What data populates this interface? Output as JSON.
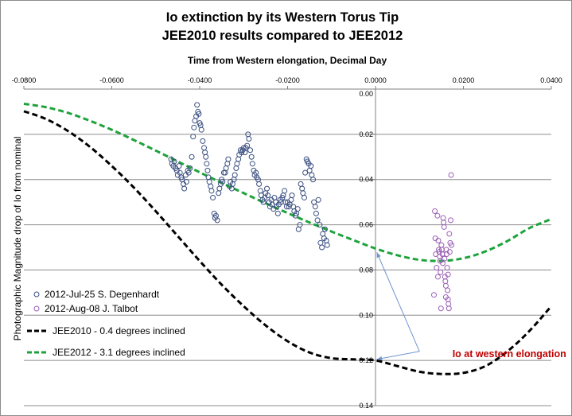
{
  "chart_data": {
    "type": "scatter",
    "title": "Io extinction by its Western Torus Tip",
    "subtitle": "JEE2010 results compared to JEE2012",
    "xlabel": "Time from Western elongation, Decimal Day",
    "ylabel": "Photographic Magnitude drop of Io from nominal",
    "xlim": [
      -0.08,
      0.04
    ],
    "ylim": [
      0.0,
      0.14
    ],
    "y_reversed": true,
    "x_axis_position": "top",
    "grid": "horizontal",
    "x_ticks": [
      "-0.0800",
      "-0.0600",
      "-0.0400",
      "-0.0200",
      "0.0000",
      "0.0200",
      "0.0400"
    ],
    "y_ticks": [
      "0.00",
      "0.02",
      "0.04",
      "0.06",
      "0.08",
      "0.10",
      "0.12",
      "0.14"
    ],
    "legend_position": "bottom-left",
    "colors": {
      "degenhardt": "#3a4f80",
      "talbot": "#9b5fb5",
      "jee2010": "#000000",
      "jee2012": "#1ea23c",
      "annotation_text": "#c00000",
      "annotation_arrow": "#6d95cf",
      "grid": "#8c8c8c"
    },
    "series": [
      {
        "name": "2012-Jul-25 S. Degenhardt",
        "kind": "scatter",
        "marker": "open-circle",
        "points": [
          [
            -0.0465,
            0.031
          ],
          [
            -0.0463,
            0.033
          ],
          [
            -0.046,
            0.034
          ],
          [
            -0.0458,
            0.032
          ],
          [
            -0.0455,
            0.035
          ],
          [
            -0.0452,
            0.036
          ],
          [
            -0.045,
            0.038
          ],
          [
            -0.0447,
            0.034
          ],
          [
            -0.0445,
            0.037
          ],
          [
            -0.0442,
            0.039
          ],
          [
            -0.044,
            0.04
          ],
          [
            -0.0437,
            0.042
          ],
          [
            -0.0435,
            0.044
          ],
          [
            -0.0432,
            0.038
          ],
          [
            -0.043,
            0.041
          ],
          [
            -0.0427,
            0.036
          ],
          [
            -0.0425,
            0.037
          ],
          [
            -0.0422,
            0.035
          ],
          [
            -0.0418,
            0.03
          ],
          [
            -0.0415,
            0.021
          ],
          [
            -0.0413,
            0.017
          ],
          [
            -0.0411,
            0.014
          ],
          [
            -0.0408,
            0.012
          ],
          [
            -0.0406,
            0.007
          ],
          [
            -0.0404,
            0.01
          ],
          [
            -0.0402,
            0.011
          ],
          [
            -0.04,
            0.015
          ],
          [
            -0.0398,
            0.016
          ],
          [
            -0.0396,
            0.018
          ],
          [
            -0.0393,
            0.023
          ],
          [
            -0.039,
            0.026
          ],
          [
            -0.0388,
            0.028
          ],
          [
            -0.0386,
            0.03
          ],
          [
            -0.0384,
            0.033
          ],
          [
            -0.0382,
            0.036
          ],
          [
            -0.038,
            0.039
          ],
          [
            -0.0378,
            0.041
          ],
          [
            -0.0375,
            0.043
          ],
          [
            -0.0373,
            0.045
          ],
          [
            -0.037,
            0.048
          ],
          [
            -0.0367,
            0.055
          ],
          [
            -0.0365,
            0.057
          ],
          [
            -0.0363,
            0.056
          ],
          [
            -0.036,
            0.058
          ],
          [
            -0.0357,
            0.046
          ],
          [
            -0.0355,
            0.044
          ],
          [
            -0.0352,
            0.042
          ],
          [
            -0.035,
            0.04
          ],
          [
            -0.0348,
            0.041
          ],
          [
            -0.0345,
            0.037
          ],
          [
            -0.0342,
            0.037
          ],
          [
            -0.034,
            0.035
          ],
          [
            -0.0337,
            0.033
          ],
          [
            -0.0335,
            0.031
          ],
          [
            -0.0332,
            0.043
          ],
          [
            -0.033,
            0.041
          ],
          [
            -0.0327,
            0.044
          ],
          [
            -0.0325,
            0.042
          ],
          [
            -0.0322,
            0.04
          ],
          [
            -0.032,
            0.038
          ],
          [
            -0.0317,
            0.035
          ],
          [
            -0.0315,
            0.033
          ],
          [
            -0.0312,
            0.031
          ],
          [
            -0.031,
            0.029
          ],
          [
            -0.0307,
            0.027
          ],
          [
            -0.0305,
            0.028
          ],
          [
            -0.0302,
            0.027
          ],
          [
            -0.03,
            0.026
          ],
          [
            -0.0297,
            0.028
          ],
          [
            -0.0295,
            0.026
          ],
          [
            -0.0292,
            0.025
          ],
          [
            -0.029,
            0.02
          ],
          [
            -0.0288,
            0.022
          ],
          [
            -0.0285,
            0.027
          ],
          [
            -0.0282,
            0.03
          ],
          [
            -0.028,
            0.033
          ],
          [
            -0.0277,
            0.036
          ],
          [
            -0.0275,
            0.038
          ],
          [
            -0.0272,
            0.037
          ],
          [
            -0.027,
            0.039
          ],
          [
            -0.0267,
            0.04
          ],
          [
            -0.0265,
            0.042
          ],
          [
            -0.0262,
            0.045
          ],
          [
            -0.026,
            0.047
          ],
          [
            -0.0257,
            0.049
          ],
          [
            -0.0255,
            0.05
          ],
          [
            -0.0252,
            0.048
          ],
          [
            -0.025,
            0.046
          ],
          [
            -0.0247,
            0.044
          ],
          [
            -0.0245,
            0.047
          ],
          [
            -0.0242,
            0.05
          ],
          [
            -0.024,
            0.052
          ],
          [
            -0.0237,
            0.049
          ],
          [
            -0.0235,
            0.051
          ],
          [
            -0.0232,
            0.053
          ],
          [
            -0.023,
            0.048
          ],
          [
            -0.0227,
            0.05
          ],
          [
            -0.0225,
            0.052
          ],
          [
            -0.0222,
            0.055
          ],
          [
            -0.022,
            0.051
          ],
          [
            -0.0217,
            0.049
          ],
          [
            -0.0215,
            0.05
          ],
          [
            -0.0212,
            0.048
          ],
          [
            -0.021,
            0.047
          ],
          [
            -0.0207,
            0.045
          ],
          [
            -0.0205,
            0.05
          ],
          [
            -0.0202,
            0.052
          ],
          [
            -0.02,
            0.05
          ],
          [
            -0.0197,
            0.052
          ],
          [
            -0.0195,
            0.051
          ],
          [
            -0.0192,
            0.049
          ],
          [
            -0.019,
            0.047
          ],
          [
            -0.0187,
            0.052
          ],
          [
            -0.0185,
            0.054
          ],
          [
            -0.0182,
            0.056
          ],
          [
            -0.018,
            0.055
          ],
          [
            -0.0177,
            0.053
          ],
          [
            -0.0175,
            0.062
          ],
          [
            -0.0172,
            0.06
          ],
          [
            -0.017,
            0.042
          ],
          [
            -0.0167,
            0.044
          ],
          [
            -0.0165,
            0.046
          ],
          [
            -0.0162,
            0.048
          ],
          [
            -0.016,
            0.037
          ],
          [
            -0.0157,
            0.031
          ],
          [
            -0.0155,
            0.032
          ],
          [
            -0.0152,
            0.033
          ],
          [
            -0.015,
            0.036
          ],
          [
            -0.0147,
            0.034
          ],
          [
            -0.0145,
            0.038
          ],
          [
            -0.0142,
            0.04
          ],
          [
            -0.014,
            0.05
          ],
          [
            -0.0137,
            0.052
          ],
          [
            -0.0135,
            0.055
          ],
          [
            -0.0132,
            0.058
          ],
          [
            -0.013,
            0.049
          ],
          [
            -0.0127,
            0.06
          ],
          [
            -0.0125,
            0.068
          ],
          [
            -0.0122,
            0.07
          ],
          [
            -0.012,
            0.064
          ],
          [
            -0.0117,
            0.066
          ],
          [
            -0.0115,
            0.062
          ],
          [
            -0.0112,
            0.067
          ],
          [
            -0.011,
            0.069
          ]
        ]
      },
      {
        "name": "2012-Aug-08 J. Talbot",
        "kind": "scatter",
        "marker": "open-circle",
        "points": [
          [
            0.0135,
            0.054
          ],
          [
            0.0137,
            0.073
          ],
          [
            0.0139,
            0.079
          ],
          [
            0.0141,
            0.056
          ],
          [
            0.0143,
            0.067
          ],
          [
            0.0144,
            0.071
          ],
          [
            0.0145,
            0.072
          ],
          [
            0.0146,
            0.074
          ],
          [
            0.0147,
            0.076
          ],
          [
            0.0148,
            0.081
          ],
          [
            0.0149,
            0.097
          ],
          [
            0.015,
            0.069
          ],
          [
            0.0151,
            0.071
          ],
          [
            0.0152,
            0.073
          ],
          [
            0.0153,
            0.077
          ],
          [
            0.0154,
            0.057
          ],
          [
            0.0155,
            0.059
          ],
          [
            0.0156,
            0.061
          ],
          [
            0.0157,
            0.075
          ],
          [
            0.0158,
            0.083
          ],
          [
            0.0159,
            0.085
          ],
          [
            0.016,
            0.087
          ],
          [
            0.0161,
            0.071
          ],
          [
            0.0162,
            0.073
          ],
          [
            0.0163,
            0.079
          ],
          [
            0.0164,
            0.089
          ],
          [
            0.0165,
            0.093
          ],
          [
            0.0166,
            0.095
          ],
          [
            0.0167,
            0.097
          ],
          [
            0.0168,
            0.064
          ],
          [
            0.0169,
            0.072
          ],
          [
            0.017,
            0.068
          ],
          [
            0.0171,
            0.058
          ],
          [
            0.0172,
            0.038
          ],
          [
            0.0173,
            0.069
          ],
          [
            0.0133,
            0.091
          ],
          [
            0.0136,
            0.066
          ],
          [
            0.0142,
            0.083
          ],
          [
            0.016,
            0.092
          ],
          [
            0.0165,
            0.082
          ]
        ]
      },
      {
        "name": "JEE2010 - 0.4 degrees inclined",
        "kind": "line",
        "style": "dashed",
        "points": [
          [
            -0.08,
            0.0098
          ],
          [
            -0.075,
            0.0132
          ],
          [
            -0.07,
            0.0185
          ],
          [
            -0.065,
            0.0255
          ],
          [
            -0.06,
            0.034
          ],
          [
            -0.055,
            0.0435
          ],
          [
            -0.05,
            0.054
          ],
          [
            -0.045,
            0.065
          ],
          [
            -0.04,
            0.076
          ],
          [
            -0.035,
            0.0865
          ],
          [
            -0.03,
            0.096
          ],
          [
            -0.025,
            0.1045
          ],
          [
            -0.02,
            0.1115
          ],
          [
            -0.015,
            0.1165
          ],
          [
            -0.01,
            0.119
          ],
          [
            -0.005,
            0.1195
          ],
          [
            0.0,
            0.12
          ],
          [
            0.005,
            0.1225
          ],
          [
            0.01,
            0.125
          ],
          [
            0.015,
            0.126
          ],
          [
            0.02,
            0.1255
          ],
          [
            0.025,
            0.1225
          ],
          [
            0.03,
            0.116
          ],
          [
            0.035,
            0.107
          ],
          [
            0.04,
            0.096
          ]
        ]
      },
      {
        "name": "JEE2012 - 3.1 degrees inclined",
        "kind": "line",
        "style": "dashed",
        "points": [
          [
            -0.08,
            0.0065
          ],
          [
            -0.075,
            0.008
          ],
          [
            -0.07,
            0.0105
          ],
          [
            -0.065,
            0.014
          ],
          [
            -0.06,
            0.018
          ],
          [
            -0.055,
            0.0225
          ],
          [
            -0.05,
            0.0272
          ],
          [
            -0.045,
            0.032
          ],
          [
            -0.04,
            0.0368
          ],
          [
            -0.035,
            0.0415
          ],
          [
            -0.03,
            0.046
          ],
          [
            -0.025,
            0.0505
          ],
          [
            -0.02,
            0.0548
          ],
          [
            -0.015,
            0.059
          ],
          [
            -0.01,
            0.063
          ],
          [
            -0.005,
            0.0668
          ],
          [
            0.0,
            0.0705
          ],
          [
            0.005,
            0.0735
          ],
          [
            0.01,
            0.0755
          ],
          [
            0.015,
            0.076
          ],
          [
            0.02,
            0.0748
          ],
          [
            0.025,
            0.0718
          ],
          [
            0.03,
            0.0672
          ],
          [
            0.035,
            0.0615
          ],
          [
            0.04,
            0.0575
          ]
        ]
      }
    ],
    "annotations": [
      {
        "text": "Io at western elongation",
        "at": [
          0.0175,
          0.1185
        ],
        "arrow_targets": [
          [
            0.0003,
            0.0722
          ],
          [
            0.0003,
            0.1195
          ]
        ],
        "arrow_tail": [
          0.01,
          0.116
        ]
      }
    ]
  }
}
